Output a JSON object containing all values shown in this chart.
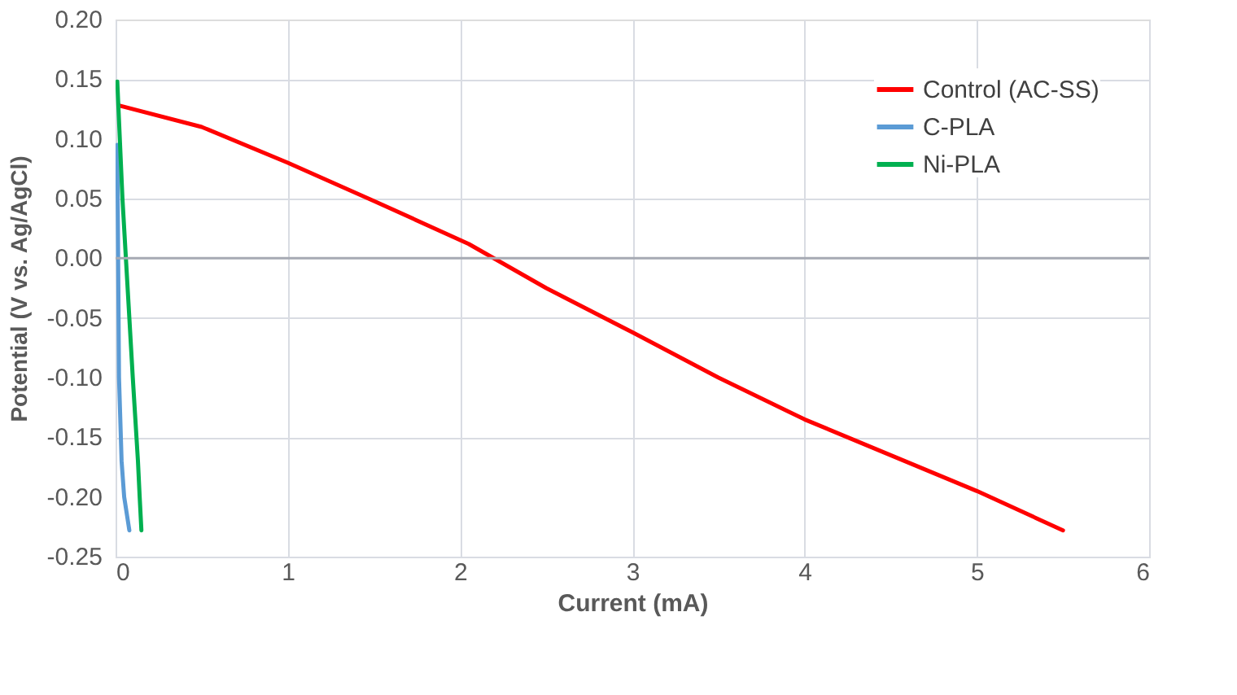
{
  "chart_data": {
    "type": "line",
    "xlabel": "Current (mA)",
    "ylabel": "Potential (V vs. Ag/AgCl)",
    "xlim": [
      0,
      6
    ],
    "xticks": [
      0,
      1,
      2,
      3,
      4,
      5,
      6
    ],
    "ylim": [
      -0.25,
      0.2
    ],
    "yticks": [
      {
        "value": -0.25,
        "label": "-0.25"
      },
      {
        "value": -0.2,
        "label": "-0.20"
      },
      {
        "value": -0.15,
        "label": "-0.15"
      },
      {
        "value": -0.1,
        "label": "-0.10"
      },
      {
        "value": -0.05,
        "label": "-0.05"
      },
      {
        "value": 0,
        "label": "0.00"
      },
      {
        "value": 0.05,
        "label": "0.05"
      },
      {
        "value": 0.1,
        "label": "0.10"
      },
      {
        "value": 0.15,
        "label": "0.15"
      },
      {
        "value": 0.2,
        "label": "0.20"
      }
    ],
    "grid": true,
    "legend": "top right",
    "line_style": "solid",
    "ref_lines": [
      {
        "axis": "y",
        "value": 0,
        "color": "#a6aab3"
      }
    ],
    "series": [
      {
        "name": "Control (AC-SS)",
        "color": "#ff0000",
        "x": [
          0.02,
          0.5,
          1,
          1.5,
          2.05,
          2.5,
          3,
          3.5,
          4,
          4.5,
          5,
          5.5
        ],
        "values": [
          0.128,
          0.11,
          0.08,
          0.048,
          0.012,
          -0.025,
          -0.062,
          -0.1,
          -0.135,
          -0.165,
          -0.195,
          -0.228
        ]
      },
      {
        "name": "C-PLA",
        "color": "#5b9bd5",
        "x": [
          0.01,
          0.015,
          0.02,
          0.035,
          0.05,
          0.08
        ],
        "values": [
          0.095,
          0.0,
          -0.1,
          -0.17,
          -0.2,
          -0.228
        ]
      },
      {
        "name": "Ni-PLA",
        "color": "#00b050",
        "x": [
          0.01,
          0.04,
          0.06,
          0.08,
          0.1,
          0.13,
          0.14,
          0.15
        ],
        "values": [
          0.148,
          0.05,
          0.0,
          -0.05,
          -0.1,
          -0.17,
          -0.2,
          -0.228
        ]
      }
    ]
  }
}
